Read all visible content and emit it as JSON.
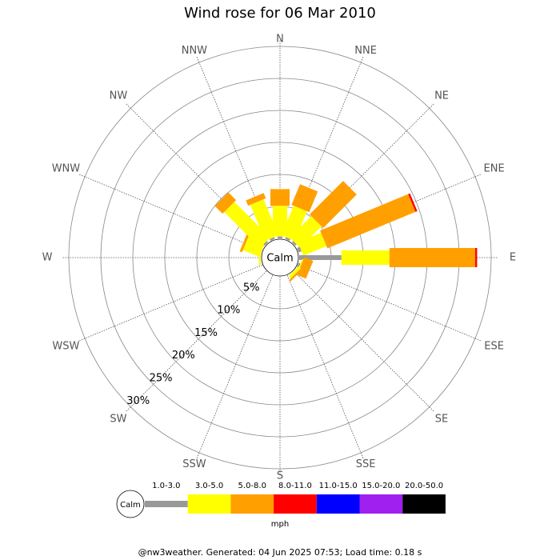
{
  "chart_data": {
    "type": "wind_rose",
    "title": "Wind rose for 06 Mar 2010",
    "categories": [
      "N",
      "NNE",
      "NE",
      "ENE",
      "E",
      "ESE",
      "SE",
      "SSE",
      "S",
      "SSW",
      "SW",
      "WSW",
      "W",
      "WNW",
      "NW",
      "NNW"
    ],
    "calm_label": "Calm",
    "series": [
      {
        "name": "1.0-3.0",
        "color": "#999999",
        "values": [
          0.3,
          0.3,
          0.3,
          0.5,
          6.6,
          0.3,
          0,
          0,
          0,
          0,
          0,
          0,
          0,
          0,
          0.3,
          0.3
        ]
      },
      {
        "name": "3.0-5.0",
        "color": "#ffff00",
        "values": [
          4.8,
          5.0,
          4.75,
          3.9,
          7.5,
          0.2,
          0.5,
          0,
          0,
          0,
          0,
          0,
          0.3,
          2.8,
          7.9,
          6.1
        ]
      },
      {
        "name": "5.0-8.0",
        "color": "#ffa000",
        "values": [
          2.6,
          3.5,
          7.4,
          14.9,
          13.4,
          1.5,
          0.3,
          0,
          0,
          0,
          0,
          0,
          0,
          0.4,
          1.7,
          0.9
        ]
      },
      {
        "name": "8.0-11.0",
        "color": "#ff0000",
        "values": [
          0,
          0,
          0,
          0.3,
          0.3,
          0,
          0,
          0,
          0,
          0,
          0,
          0,
          0,
          0,
          0,
          0
        ]
      },
      {
        "name": "11.0-15.0",
        "color": "#0000ff",
        "values": [
          0,
          0,
          0,
          0,
          0,
          0,
          0,
          0,
          0,
          0,
          0,
          0,
          0,
          0,
          0,
          0
        ]
      },
      {
        "name": "15.0-20.0",
        "color": "#a020f0",
        "values": [
          0,
          0,
          0,
          0,
          0,
          0,
          0,
          0,
          0,
          0,
          0,
          0,
          0,
          0,
          0,
          0
        ]
      },
      {
        "name": "20.0-50.0",
        "color": "#000000",
        "values": [
          0,
          0,
          0,
          0,
          0,
          0,
          0,
          0,
          0,
          0,
          0,
          0,
          0,
          0,
          0,
          0
        ]
      }
    ],
    "rlim": [
      0,
      30
    ],
    "rticks": [
      {
        "value": 5,
        "label": "5%"
      },
      {
        "value": 10,
        "label": "10%"
      },
      {
        "value": 15,
        "label": "15%"
      },
      {
        "value": 20,
        "label": "20%"
      },
      {
        "value": 25,
        "label": "25%"
      },
      {
        "value": 30,
        "label": "30%"
      }
    ],
    "legend_unit": "mph",
    "footer": "@nw3weather. Generated: 04 Jun 2025 07:53; Load time: 0.18 s"
  }
}
